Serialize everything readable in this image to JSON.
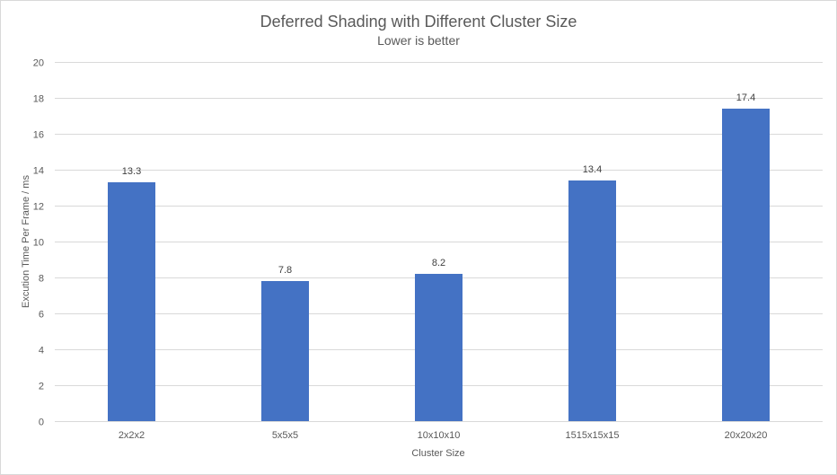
{
  "chart_data": {
    "type": "bar",
    "title": "Deferred Shading with Different Cluster Size",
    "subtitle": "Lower  is better",
    "xlabel": "Cluster Size",
    "ylabel": "Excution Time Per Frame / ms",
    "categories": [
      "2x2x2",
      "5x5x5",
      "10x10x10",
      "1515x15x15",
      "20x20x20"
    ],
    "values": [
      13.3,
      7.8,
      8.2,
      13.4,
      17.4
    ],
    "data_labels": [
      "13.3",
      "7.8",
      "8.2",
      "13.4",
      "17.4"
    ],
    "ylim": [
      0,
      20
    ],
    "yticks": [
      0,
      2,
      4,
      6,
      8,
      10,
      12,
      14,
      16,
      18,
      20
    ],
    "grid": true,
    "legend": "none",
    "colors": {
      "bar": "#4472c4",
      "text": "#595959",
      "grid": "#d9d9d9"
    }
  }
}
